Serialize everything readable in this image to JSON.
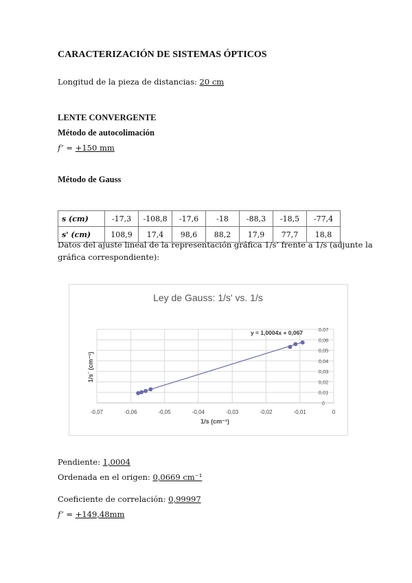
{
  "title": "CARACTERIZACIÓN DE SISTEMAS ÓPTICOS",
  "longitud": {
    "label": "Longitud de la pieza de distancias: ",
    "value": " 20 cm"
  },
  "section": "LENTE CONVERGENTE",
  "auto": {
    "heading": "Método de autocolimación",
    "label": "f’ = ",
    "value": "+150 mm"
  },
  "gauss": {
    "heading": "Método de Gauss"
  },
  "table": {
    "rows": [
      {
        "header": "s (cm)",
        "values": [
          "-17,3",
          "-108,8",
          "-17,6",
          "-18",
          "-88,3",
          "-18,5",
          "-77,4"
        ]
      },
      {
        "header": "s' (cm)",
        "values": [
          "108,9",
          "17,4",
          "98,6",
          "88,2",
          "17,9",
          "77,7",
          "18,8"
        ]
      }
    ]
  },
  "fit_text_1": "Datos del ajuste lineal de la representación gráfica 1/s’ frente a 1/s (adjunte la",
  "fit_text_2": "gráfica correspondiente):",
  "chart_data": {
    "type": "scatter",
    "title": "Ley de Gauss: 1/s' vs. 1/s",
    "xlabel": "1/s (cm⁻¹)",
    "ylabel": "1/s´ (cm⁻¹)",
    "xlim": [
      -0.07,
      0
    ],
    "ylim": [
      0,
      0.07
    ],
    "xticks": [
      "-0,07",
      "-0,06",
      "-0,05",
      "-0,04",
      "-0,03",
      "-0,02",
      "-0,01",
      "0"
    ],
    "yticks": [
      "0",
      "0,01",
      "0,02",
      "0,03",
      "0,04",
      "0,05",
      "0,06",
      "0,07"
    ],
    "grid": true,
    "points": [
      [
        -0.0578,
        0.0092
      ],
      [
        -0.0092,
        0.0575
      ],
      [
        -0.0568,
        0.0101
      ],
      [
        -0.0556,
        0.0113
      ],
      [
        -0.0113,
        0.0559
      ],
      [
        -0.0541,
        0.0129
      ],
      [
        -0.0129,
        0.0532
      ]
    ],
    "trendline": {
      "slope": 1.0004,
      "intercept": 0.067,
      "label": "y = 1,0004x + 0,067"
    },
    "color": "#6a6aa8"
  },
  "results": {
    "pendiente": {
      "label": "Pendiente: ",
      "value": " 1,0004"
    },
    "ordenada": {
      "label": "Ordenada en el origen: ",
      "value": " 0,0669 cm⁻¹"
    },
    "correlacion": {
      "label": "Coeficiente de correlación: ",
      "value": " 0,99997"
    },
    "focal": {
      "label": "f’ = ",
      "value": "+149,48mm"
    }
  }
}
